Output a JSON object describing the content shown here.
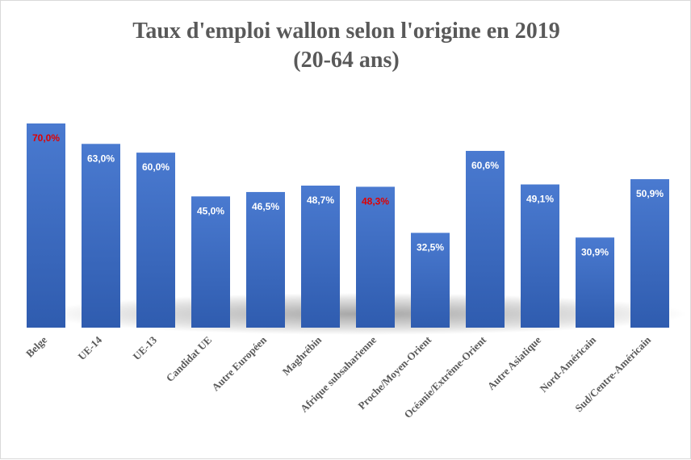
{
  "chart_data": {
    "type": "bar",
    "title_lines": [
      "Taux d'emploi wallon selon l'origine en 2019",
      "(20-64 ans)"
    ],
    "categories": [
      "Belge",
      "UE-14",
      "UE-13",
      "Candidat UE",
      "Autre Européen",
      "Maghrébin",
      "Afrique subsaharienne",
      "Proche/Moyen-Orient",
      "Océanie/Extrême-Orient",
      "Autre Asiatique",
      "Nord-Américain",
      "Sud/Centre-Américain"
    ],
    "values": [
      70.0,
      63.0,
      60.0,
      45.0,
      46.5,
      48.7,
      48.3,
      32.5,
      60.6,
      49.1,
      30.9,
      50.9
    ],
    "data_labels": [
      "70,0%",
      "63,0%",
      "60,0%",
      "45,0%",
      "46,5%",
      "48,7%",
      "48,3%",
      "32,5%",
      "60,6%",
      "49,1%",
      "30,9%",
      "50,9%"
    ],
    "highlighted_indices": [
      0,
      6
    ],
    "ylim": [
      0,
      70
    ],
    "grid": false,
    "legend": "none",
    "colors": {
      "bar_top": "#4a7ad0",
      "bar_bottom": "#2f5caf",
      "label_default": "#ffffff",
      "label_highlight": "#e00000",
      "text": "#595959"
    }
  }
}
